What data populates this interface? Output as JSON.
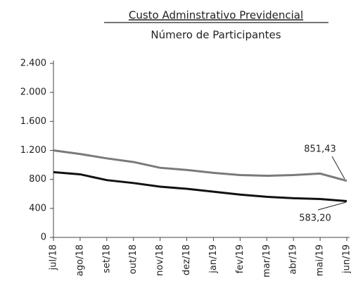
{
  "chart_data": {
    "type": "line",
    "title": "Custo Adminstrativo Previdencial",
    "subtitle": "Número de Participantes",
    "categories": [
      "jul/18",
      "ago/18",
      "set/18",
      "out/18",
      "nov/18",
      "dez/18",
      "jan/19",
      "fev/19",
      "mar/19",
      "abr/19",
      "mai/19",
      "jun/19"
    ],
    "series": [
      {
        "name": "Custo Administrativo",
        "color": "#7a7a7a",
        "values": [
          1200,
          1150,
          1090,
          1040,
          960,
          930,
          890,
          860,
          850,
          860,
          880,
          780
        ]
      },
      {
        "name": "Participantes",
        "color": "#111111",
        "values": [
          900,
          870,
          790,
          750,
          700,
          670,
          630,
          590,
          560,
          540,
          530,
          500
        ]
      }
    ],
    "annotations": [
      "851,43",
      "583,20"
    ],
    "ylim": [
      0,
      2400
    ],
    "yticks": [
      0,
      400,
      800,
      {
        "value": 1200,
        "label": "1.200"
      },
      {
        "value": 1600,
        "label": "1.600"
      },
      {
        "value": 2000,
        "label": "2.000"
      },
      {
        "value": 2400,
        "label": "2.400"
      }
    ],
    "grid": false
  }
}
